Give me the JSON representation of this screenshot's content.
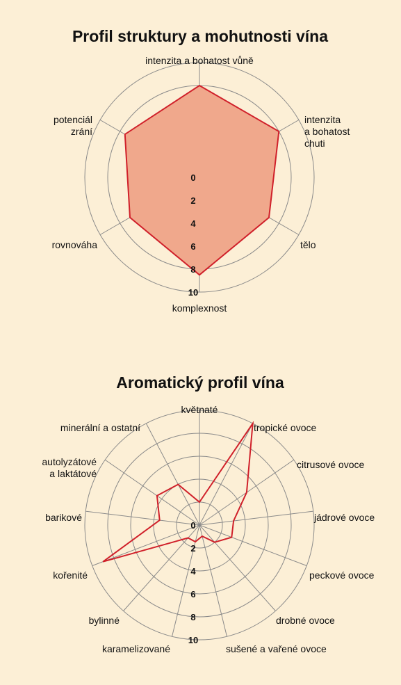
{
  "chart_data": [
    {
      "type": "radar",
      "title": "Profil struktury a mohutnosti vína",
      "categories": [
        "intenzita a bohatost vůně",
        "intenzita\na bohatost\nchuti",
        "tělo",
        "komplexnost",
        "rovnováha",
        "potenciál\nzrání"
      ],
      "values": [
        8,
        8,
        7,
        8.5,
        7,
        7.5
      ],
      "ticks": [
        "0",
        "2",
        "4",
        "6",
        "8",
        "10"
      ],
      "rlim": [
        0,
        10
      ],
      "fill": "#f0a88c",
      "stroke": "#d0202a"
    },
    {
      "type": "radar",
      "title": "Aromatický profil vína",
      "categories": [
        "květnaté",
        "tropické ovoce",
        "citrusové ovoce",
        "jádrové ovoce",
        "peckové ovoce",
        "drobné ovoce",
        "sušené a vařené ovoce",
        "karamelizované",
        "bylinné",
        "kořenité",
        "barikové",
        "autolyzátové\na laktátové",
        "minerální a ostatní"
      ],
      "values": [
        2,
        10,
        5,
        3,
        3,
        2,
        1,
        1.5,
        1.5,
        9,
        3.5,
        4.5,
        4
      ],
      "ticks": [
        "0",
        "2",
        "4",
        "6",
        "8",
        "10"
      ],
      "rlim": [
        0,
        10
      ],
      "fill": "none",
      "stroke": "#d0202a"
    }
  ]
}
